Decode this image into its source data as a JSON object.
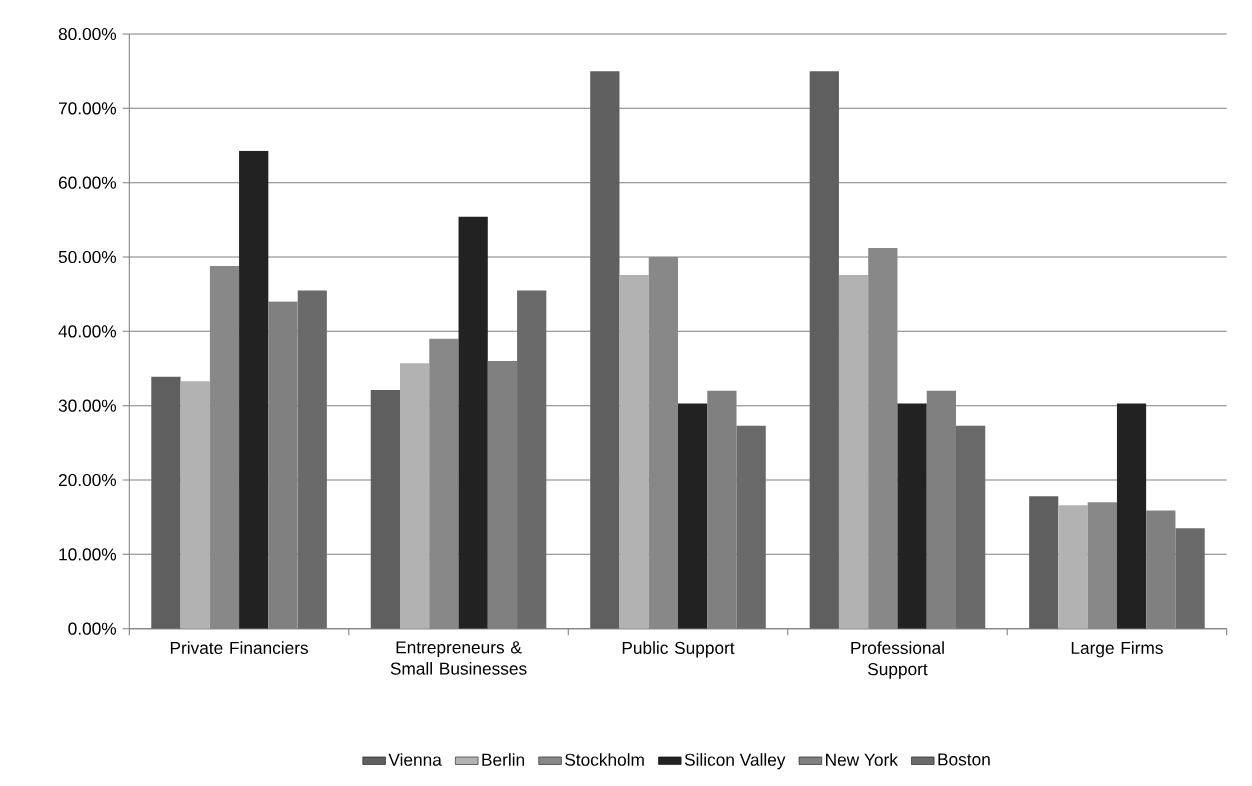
{
  "chart_data": {
    "type": "bar",
    "categories": [
      "Private Financiers",
      "Entrepreneurs & Small Businesses",
      "Public Support",
      "Professional Support",
      "Large Firms"
    ],
    "series": [
      {
        "name": "Vienna",
        "color": "#5f5f5f",
        "values": [
          33.9,
          32.1,
          75.0,
          75.0,
          17.8
        ]
      },
      {
        "name": "Berlin",
        "color": "#b2b2b2",
        "values": [
          33.3,
          35.7,
          47.6,
          47.6,
          16.6
        ]
      },
      {
        "name": "Stockholm",
        "color": "#888888",
        "values": [
          48.8,
          39.0,
          50.0,
          51.2,
          17.0
        ]
      },
      {
        "name": "Silicon Valley",
        "color": "#222222",
        "values": [
          64.3,
          55.4,
          30.3,
          30.3,
          30.3
        ]
      },
      {
        "name": "New York",
        "color": "#808080",
        "values": [
          44.0,
          36.0,
          32.0,
          32.0,
          15.9
        ]
      },
      {
        "name": "Boston",
        "color": "#6a6a6a",
        "values": [
          45.5,
          45.5,
          27.3,
          27.3,
          13.5
        ]
      }
    ],
    "ylim": [
      0,
      80
    ],
    "yticks": [
      {
        "value": 0,
        "label": "0.00%"
      },
      {
        "value": 10,
        "label": "10.00%"
      },
      {
        "value": 20,
        "label": "20.00%"
      },
      {
        "value": 30,
        "label": "30.00%"
      },
      {
        "value": 40,
        "label": "40.00%"
      },
      {
        "value": 50,
        "label": "50.00%"
      },
      {
        "value": 60,
        "label": "60.00%"
      },
      {
        "value": 70,
        "label": "70.00%"
      },
      {
        "value": 80,
        "label": "80.00%"
      }
    ],
    "grid": "y",
    "legend": "bottom"
  }
}
